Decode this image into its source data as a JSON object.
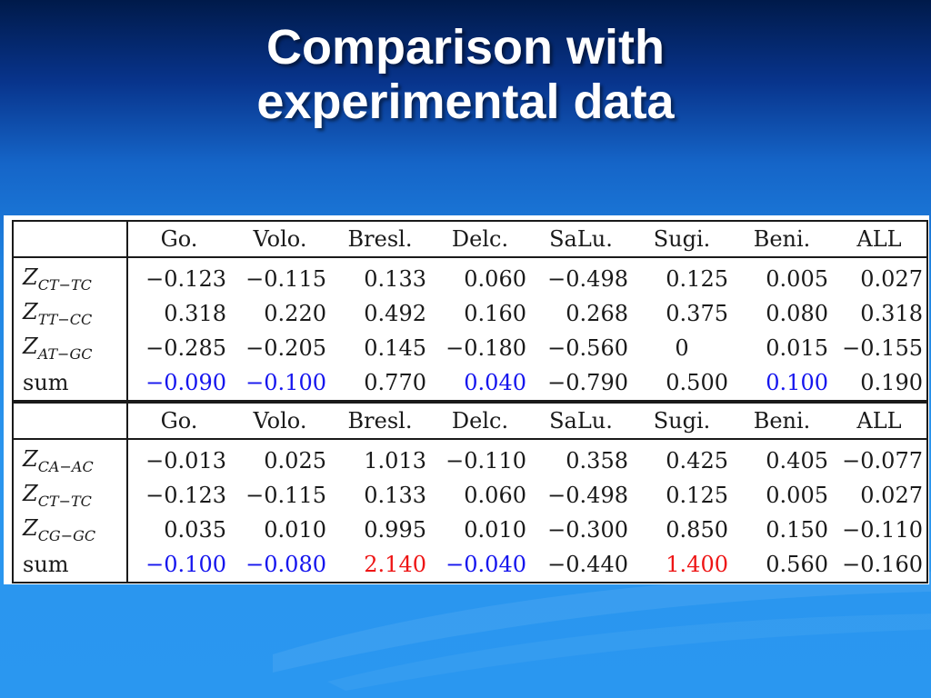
{
  "slide": {
    "title_line1": "Comparison with",
    "title_line2": "experimental data"
  },
  "colors": {
    "background_top": "#001a4a",
    "background_bottom": "#2a97f0",
    "highlight_blue": "#1515ee",
    "highlight_red": "#ee1515"
  },
  "tables": [
    {
      "columns": [
        "Go.",
        "Volo.",
        "Bresl.",
        "Delc.",
        "SaLu.",
        "Sugi.",
        "Beni.",
        "ALL"
      ],
      "rows": [
        {
          "label_main": "Z",
          "label_sub": "CT−TC",
          "values": [
            "−0.123",
            "−0.115",
            "0.133",
            "0.060",
            "−0.498",
            "0.125",
            "0.005",
            "0.027"
          ],
          "colors": [
            "black",
            "black",
            "black",
            "black",
            "black",
            "black",
            "black",
            "black"
          ]
        },
        {
          "label_main": "Z",
          "label_sub": "TT−CC",
          "values": [
            "0.318",
            "0.220",
            "0.492",
            "0.160",
            "0.268",
            "0.375",
            "0.080",
            "0.318"
          ],
          "colors": [
            "black",
            "black",
            "black",
            "black",
            "black",
            "black",
            "black",
            "black"
          ]
        },
        {
          "label_main": "Z",
          "label_sub": "AT−GC",
          "values": [
            "−0.285",
            "−0.205",
            "0.145",
            "−0.180",
            "−0.560",
            "0",
            "0.015",
            "−0.155"
          ],
          "colors": [
            "black",
            "black",
            "black",
            "black",
            "black",
            "black",
            "black",
            "black"
          ]
        },
        {
          "label_main": "sum",
          "label_sub": "",
          "values": [
            "−0.090",
            "−0.100",
            "0.770",
            "0.040",
            "−0.790",
            "0.500",
            "0.100",
            "0.190"
          ],
          "colors": [
            "blue",
            "blue",
            "black",
            "blue",
            "black",
            "black",
            "blue",
            "black"
          ]
        }
      ]
    },
    {
      "columns": [
        "Go.",
        "Volo.",
        "Bresl.",
        "Delc.",
        "SaLu.",
        "Sugi.",
        "Beni.",
        "ALL"
      ],
      "rows": [
        {
          "label_main": "Z",
          "label_sub": "CA−AC",
          "values": [
            "−0.013",
            "0.025",
            "1.013",
            "−0.110",
            "0.358",
            "0.425",
            "0.405",
            "−0.077"
          ],
          "colors": [
            "black",
            "black",
            "black",
            "black",
            "black",
            "black",
            "black",
            "black"
          ]
        },
        {
          "label_main": "Z",
          "label_sub": "CT−TC",
          "values": [
            "−0.123",
            "−0.115",
            "0.133",
            "0.060",
            "−0.498",
            "0.125",
            "0.005",
            "0.027"
          ],
          "colors": [
            "black",
            "black",
            "black",
            "black",
            "black",
            "black",
            "black",
            "black"
          ]
        },
        {
          "label_main": "Z",
          "label_sub": "CG−GC",
          "values": [
            "0.035",
            "0.010",
            "0.995",
            "0.010",
            "−0.300",
            "0.850",
            "0.150",
            "−0.110"
          ],
          "colors": [
            "black",
            "black",
            "black",
            "black",
            "black",
            "black",
            "black",
            "black"
          ]
        },
        {
          "label_main": "sum",
          "label_sub": "",
          "values": [
            "−0.100",
            "−0.080",
            "2.140",
            "−0.040",
            "−0.440",
            "1.400",
            "0.560",
            "−0.160"
          ],
          "colors": [
            "blue",
            "blue",
            "red",
            "blue",
            "black",
            "red",
            "black",
            "black"
          ]
        }
      ]
    }
  ]
}
